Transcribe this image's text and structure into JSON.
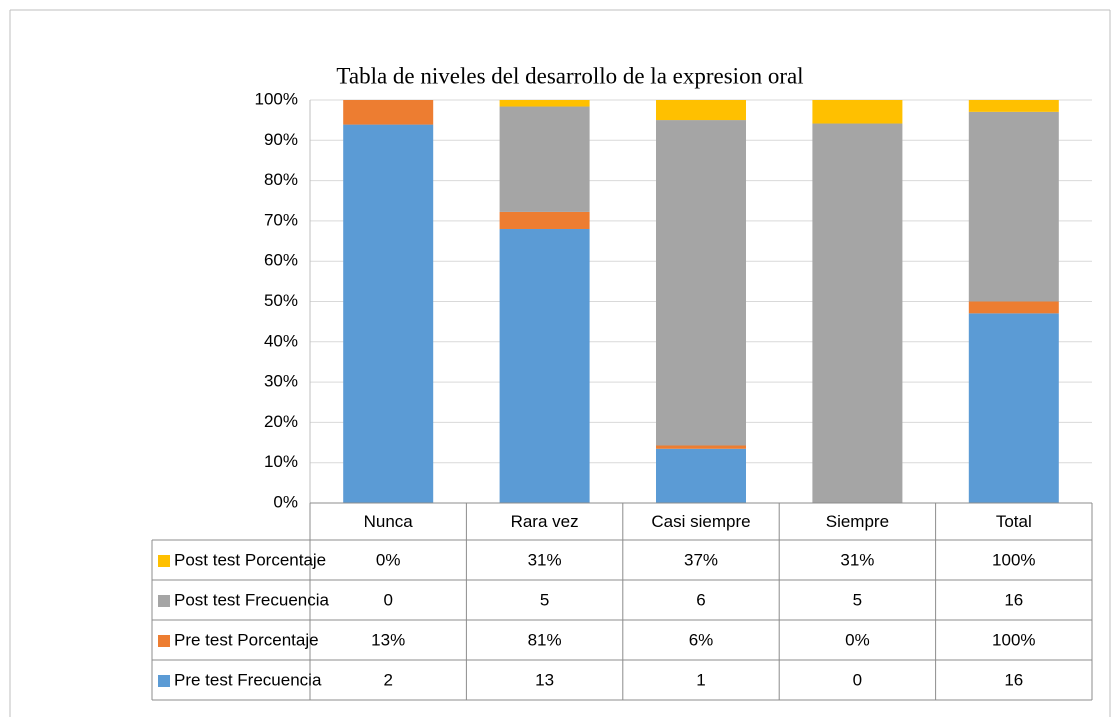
{
  "chart_data": {
    "type": "stacked_bar_100",
    "title": "Tabla de niveles del desarrollo de la expresion oral",
    "categories": [
      "Nunca",
      "Rara vez",
      "Casi siempre",
      "Siempre",
      "Total"
    ],
    "series": [
      {
        "name": "Pre test Frecuencia",
        "color": "#5b9bd5",
        "values": [
          2,
          13,
          1,
          0,
          16
        ]
      },
      {
        "name": "Pre test Porcentaje",
        "color": "#ed7d31",
        "values": [
          0.13,
          0.81,
          0.06,
          0,
          1
        ],
        "value_labels": [
          "13%",
          "81%",
          "6%",
          "0%",
          "100%"
        ]
      },
      {
        "name": "Post test Frecuencia",
        "color": "#a5a5a5",
        "values": [
          0,
          5,
          6,
          5,
          16
        ]
      },
      {
        "name": "Post test Porcentaje",
        "color": "#ffc000",
        "values": [
          0,
          0.31,
          0.37,
          0.31,
          1
        ],
        "value_labels": [
          "0%",
          "31%",
          "37%",
          "31%",
          "100%"
        ]
      }
    ],
    "ylim": [
      0,
      1
    ],
    "yticks": [
      {
        "value": 0,
        "label": "0%"
      },
      {
        "value": 0.1,
        "label": "10%"
      },
      {
        "value": 0.2,
        "label": "20%"
      },
      {
        "value": 0.3,
        "label": "30%"
      },
      {
        "value": 0.4,
        "label": "40%"
      },
      {
        "value": 0.5,
        "label": "50%"
      },
      {
        "value": 0.6,
        "label": "60%"
      },
      {
        "value": 0.7,
        "label": "70%"
      },
      {
        "value": 0.8,
        "label": "80%"
      },
      {
        "value": 0.9,
        "label": "90%"
      },
      {
        "value": 1,
        "label": "100%"
      }
    ],
    "grid": true
  }
}
